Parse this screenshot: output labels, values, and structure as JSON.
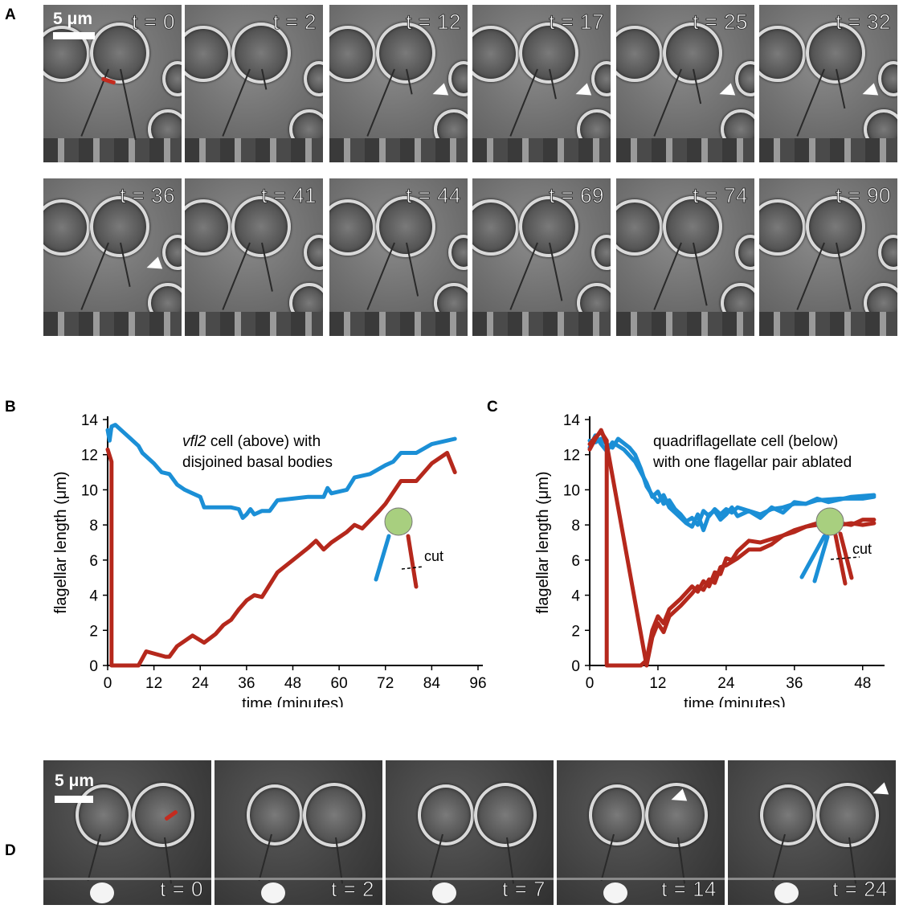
{
  "panels": {
    "a": "A",
    "b": "B",
    "c": "C",
    "d": "D"
  },
  "scalebar": {
    "label": "5 μm"
  },
  "panel_a": {
    "frames": [
      {
        "label": "t = 0",
        "arrow": false,
        "cut": true
      },
      {
        "label": "t = 2",
        "arrow": false,
        "cut": false
      },
      {
        "label": "t = 12",
        "arrow": true,
        "cut": false
      },
      {
        "label": "t = 17",
        "arrow": true,
        "cut": false
      },
      {
        "label": "t = 25",
        "arrow": true,
        "cut": false
      },
      {
        "label": "t = 32",
        "arrow": true,
        "cut": false
      },
      {
        "label": "t = 36",
        "arrow": true,
        "cut": false
      },
      {
        "label": "t = 41",
        "arrow": false,
        "cut": false
      },
      {
        "label": "t = 44",
        "arrow": false,
        "cut": false
      },
      {
        "label": "t = 69",
        "arrow": false,
        "cut": false
      },
      {
        "label": "t = 74",
        "arrow": false,
        "cut": false
      },
      {
        "label": "t = 90",
        "arrow": false,
        "cut": false
      }
    ]
  },
  "panel_d": {
    "frames": [
      {
        "label": "t = 0",
        "arrow": false,
        "cut": true
      },
      {
        "label": "t = 2",
        "arrow": false,
        "cut": false
      },
      {
        "label": "t = 7",
        "arrow": false,
        "cut": false
      },
      {
        "label": "t = 14",
        "arrow": true,
        "cut": false
      },
      {
        "label": "t = 24",
        "arrow": true,
        "cut": false
      }
    ]
  },
  "inset": {
    "cut_label": "cut",
    "cell_color": "#a8cf7f",
    "blue": "#1b8fd6",
    "red": "#b5281c"
  },
  "chart_data": [
    {
      "type": "line",
      "panel": "B",
      "annotation_line1_italic": "vfl2",
      "annotation_line1_rest": " cell (above) with",
      "annotation_line2": "disjoined basal bodies",
      "xlabel": "time (minutes)",
      "ylabel": "flagellar length (μm)",
      "xlim": [
        0,
        96
      ],
      "ylim": [
        0,
        14
      ],
      "xticks": [
        0,
        12,
        24,
        36,
        48,
        60,
        72,
        84,
        96
      ],
      "yticks": [
        0,
        2,
        4,
        6,
        8,
        10,
        12,
        14
      ],
      "series": [
        {
          "color": "#1b8fd6",
          "points": [
            [
              0,
              13.4
            ],
            [
              0.5,
              12.8
            ],
            [
              1,
              13.6
            ],
            [
              2,
              13.7
            ],
            [
              4,
              13.3
            ],
            [
              6,
              12.9
            ],
            [
              8,
              12.5
            ],
            [
              9,
              12.1
            ],
            [
              10,
              11.9
            ],
            [
              12,
              11.5
            ],
            [
              14,
              11.0
            ],
            [
              16,
              10.9
            ],
            [
              18,
              10.3
            ],
            [
              20,
              10.0
            ],
            [
              22,
              9.8
            ],
            [
              24,
              9.6
            ],
            [
              25,
              9.0
            ],
            [
              28,
              9.0
            ],
            [
              30,
              9.0
            ],
            [
              32,
              9.0
            ],
            [
              34,
              8.9
            ],
            [
              35,
              8.4
            ],
            [
              36,
              8.6
            ],
            [
              37,
              8.9
            ],
            [
              38,
              8.6
            ],
            [
              40,
              8.8
            ],
            [
              42,
              8.8
            ],
            [
              44,
              9.4
            ],
            [
              48,
              9.5
            ],
            [
              52,
              9.6
            ],
            [
              56,
              9.6
            ],
            [
              57,
              10.1
            ],
            [
              58,
              9.8
            ],
            [
              62,
              10.0
            ],
            [
              64,
              10.7
            ],
            [
              68,
              10.9
            ],
            [
              72,
              11.4
            ],
            [
              74,
              11.6
            ],
            [
              76,
              12.1
            ],
            [
              80,
              12.1
            ],
            [
              84,
              12.6
            ],
            [
              88,
              12.8
            ],
            [
              90,
              12.9
            ]
          ]
        },
        {
          "color": "#b5281c",
          "points": [
            [
              0,
              12.3
            ],
            [
              1,
              11.6
            ],
            [
              1,
              0
            ],
            [
              8,
              0
            ],
            [
              10,
              0.8
            ],
            [
              15,
              0.5
            ],
            [
              16,
              0.5
            ],
            [
              18,
              1.1
            ],
            [
              22,
              1.7
            ],
            [
              25,
              1.3
            ],
            [
              28,
              1.8
            ],
            [
              30,
              2.3
            ],
            [
              32,
              2.6
            ],
            [
              34,
              3.2
            ],
            [
              36,
              3.7
            ],
            [
              38,
              4.0
            ],
            [
              40,
              3.9
            ],
            [
              42,
              4.6
            ],
            [
              44,
              5.3
            ],
            [
              48,
              6.0
            ],
            [
              52,
              6.7
            ],
            [
              54,
              7.1
            ],
            [
              56,
              6.6
            ],
            [
              58,
              7.0
            ],
            [
              62,
              7.6
            ],
            [
              64,
              8.0
            ],
            [
              66,
              7.8
            ],
            [
              70,
              8.7
            ],
            [
              72,
              9.2
            ],
            [
              76,
              10.5
            ],
            [
              80,
              10.5
            ],
            [
              84,
              11.5
            ],
            [
              88,
              12.1
            ],
            [
              90,
              11.0
            ]
          ]
        }
      ]
    },
    {
      "type": "line",
      "panel": "C",
      "annotation_line1": "quadriflagellate cell (below)",
      "annotation_line2": "with one flagellar pair ablated",
      "xlabel": "time (minutes)",
      "ylabel": "flagellar length (μm)",
      "xlim": [
        0,
        51
      ],
      "ylim": [
        0,
        14
      ],
      "xticks": [
        0,
        12,
        24,
        36,
        48
      ],
      "yticks": [
        0,
        2,
        4,
        6,
        8,
        10,
        12,
        14
      ],
      "series": [
        {
          "color": "#1b8fd6",
          "points": [
            [
              0,
              12.4
            ],
            [
              1,
              13.1
            ],
            [
              2,
              12.6
            ],
            [
              3,
              12.2
            ],
            [
              4,
              12.7
            ],
            [
              6,
              12.3
            ],
            [
              8,
              11.6
            ],
            [
              9,
              11.0
            ],
            [
              10,
              10.4
            ],
            [
              11,
              9.6
            ],
            [
              12,
              9.9
            ],
            [
              13,
              9.2
            ],
            [
              14,
              9.4
            ],
            [
              15,
              8.9
            ],
            [
              16,
              8.6
            ],
            [
              17,
              8.2
            ],
            [
              18,
              8.4
            ],
            [
              19,
              8.0
            ],
            [
              20,
              8.8
            ],
            [
              21,
              8.5
            ],
            [
              22,
              8.9
            ],
            [
              23,
              8.6
            ],
            [
              24,
              8.9
            ],
            [
              25,
              8.7
            ],
            [
              26,
              9.0
            ],
            [
              28,
              8.8
            ],
            [
              30,
              8.6
            ],
            [
              32,
              8.9
            ],
            [
              34,
              9.0
            ],
            [
              36,
              9.2
            ],
            [
              38,
              9.2
            ],
            [
              40,
              9.4
            ],
            [
              44,
              9.5
            ],
            [
              48,
              9.5
            ],
            [
              50,
              9.6
            ]
          ]
        },
        {
          "color": "#1b8fd6",
          "points": [
            [
              0,
              12.8
            ],
            [
              1,
              12.7
            ],
            [
              2,
              12.9
            ],
            [
              3,
              12.6
            ],
            [
              4,
              12.4
            ],
            [
              5,
              12.9
            ],
            [
              7,
              12.4
            ],
            [
              8,
              12.0
            ],
            [
              9,
              11.2
            ],
            [
              10,
              10.2
            ],
            [
              11,
              9.7
            ],
            [
              12,
              9.3
            ],
            [
              13,
              9.7
            ],
            [
              14,
              9.0
            ],
            [
              15,
              8.7
            ],
            [
              16,
              8.4
            ],
            [
              17,
              8.1
            ],
            [
              18,
              7.9
            ],
            [
              19,
              8.6
            ],
            [
              20,
              7.7
            ],
            [
              21,
              8.6
            ],
            [
              22,
              8.8
            ],
            [
              23,
              8.3
            ],
            [
              24,
              8.6
            ],
            [
              25,
              9.0
            ],
            [
              26,
              8.5
            ],
            [
              28,
              8.8
            ],
            [
              30,
              8.4
            ],
            [
              32,
              9.0
            ],
            [
              34,
              8.7
            ],
            [
              36,
              9.3
            ],
            [
              38,
              9.2
            ],
            [
              40,
              9.5
            ],
            [
              42,
              9.3
            ],
            [
              46,
              9.6
            ],
            [
              50,
              9.7
            ]
          ]
        },
        {
          "color": "#b5281c",
          "points": [
            [
              0,
              12.6
            ],
            [
              1,
              13.0
            ],
            [
              2,
              13.3
            ],
            [
              3,
              12.8
            ],
            [
              3,
              0
            ],
            [
              9,
              0
            ],
            [
              10,
              0.3
            ],
            [
              11,
              2.0
            ],
            [
              12,
              2.8
            ],
            [
              13,
              2.4
            ],
            [
              14,
              3.2
            ],
            [
              15,
              3.5
            ],
            [
              16,
              3.8
            ],
            [
              18,
              4.5
            ],
            [
              19,
              4.2
            ],
            [
              20,
              4.8
            ],
            [
              21,
              4.5
            ],
            [
              22,
              5.3
            ],
            [
              23,
              5.2
            ],
            [
              24,
              6.1
            ],
            [
              25,
              6.0
            ],
            [
              26,
              6.5
            ],
            [
              28,
              7.1
            ],
            [
              30,
              7.0
            ],
            [
              32,
              7.2
            ],
            [
              34,
              7.4
            ],
            [
              36,
              7.7
            ],
            [
              38,
              7.9
            ],
            [
              40,
              8.0
            ],
            [
              42,
              8.1
            ],
            [
              44,
              8.0
            ],
            [
              46,
              8.1
            ],
            [
              48,
              8.0
            ],
            [
              50,
              8.1
            ]
          ]
        },
        {
          "color": "#b5281c",
          "points": [
            [
              0,
              12.3
            ],
            [
              1,
              12.9
            ],
            [
              2,
              13.4
            ],
            [
              3,
              12.6
            ],
            [
              10,
              0
            ],
            [
              11,
              1.6
            ],
            [
              12,
              2.4
            ],
            [
              13,
              1.9
            ],
            [
              14,
              2.8
            ],
            [
              15,
              3.1
            ],
            [
              16,
              3.4
            ],
            [
              18,
              4.1
            ],
            [
              19,
              4.5
            ],
            [
              20,
              4.3
            ],
            [
              21,
              4.9
            ],
            [
              22,
              4.7
            ],
            [
              23,
              5.6
            ],
            [
              24,
              5.7
            ],
            [
              26,
              6.1
            ],
            [
              28,
              6.6
            ],
            [
              30,
              6.6
            ],
            [
              32,
              6.9
            ],
            [
              34,
              7.4
            ],
            [
              36,
              7.6
            ],
            [
              38,
              7.9
            ],
            [
              40,
              8.1
            ],
            [
              42,
              8.2
            ],
            [
              44,
              8.1
            ],
            [
              46,
              8.0
            ],
            [
              48,
              8.3
            ],
            [
              50,
              8.3
            ]
          ]
        }
      ]
    }
  ]
}
